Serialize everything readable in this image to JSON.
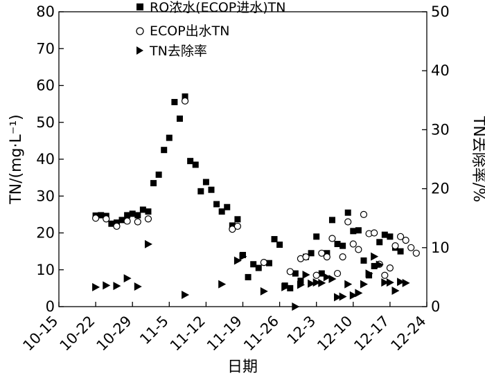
{
  "chart_data": {
    "type": "scatter",
    "xlabel": "日期",
    "ylabel_left": "TN/(mg·L⁻¹)",
    "ylabel_right": "TN去除率/%",
    "x_ticks": [
      "10-15",
      "10-22",
      "10-29",
      "11-5",
      "11-12",
      "11-19",
      "11-26",
      "12-3",
      "12-10",
      "12-17",
      "12-24"
    ],
    "x_range": [
      0,
      70
    ],
    "y_left_ticks": [
      "0",
      "10",
      "20",
      "30",
      "40",
      "50",
      "60",
      "70",
      "80"
    ],
    "y_left_range": [
      0,
      80
    ],
    "y_right_ticks": [
      "0",
      "10",
      "20",
      "30",
      "40",
      "50"
    ],
    "y_right_range": [
      0,
      50
    ],
    "legend": [
      "RO浓水(ECOP进水)TN",
      "ECOP出水TN",
      "TN去除率"
    ],
    "series": [
      {
        "name": "RO浓水(ECOP进水)TN",
        "axis": "left",
        "marker": "square",
        "points": [
          [
            7,
            24.7
          ],
          [
            8,
            24.8
          ],
          [
            9,
            24.6
          ],
          [
            10,
            22.5
          ],
          [
            11,
            22.8
          ],
          [
            12,
            23.5
          ],
          [
            13,
            24.8
          ],
          [
            14,
            25.2
          ],
          [
            15,
            24.8
          ],
          [
            16,
            26.3
          ],
          [
            17,
            25.8
          ],
          [
            18,
            33.5
          ],
          [
            19,
            35.8
          ],
          [
            20,
            42.5
          ],
          [
            21,
            45.8
          ],
          [
            22,
            55.5
          ],
          [
            23,
            51
          ],
          [
            24,
            57
          ],
          [
            25,
            39.5
          ],
          [
            26,
            38.5
          ],
          [
            27,
            31.3
          ],
          [
            28,
            33.8
          ],
          [
            29,
            31.7
          ],
          [
            30,
            27.8
          ],
          [
            31,
            25.8
          ],
          [
            32,
            27
          ],
          [
            33,
            22
          ],
          [
            34,
            23.7
          ],
          [
            35,
            14
          ],
          [
            36,
            8
          ],
          [
            37,
            11.5
          ],
          [
            38,
            10.5
          ],
          [
            40,
            11.8
          ],
          [
            41,
            18.3
          ],
          [
            42,
            16.8
          ],
          [
            43,
            5.7
          ],
          [
            44,
            5
          ],
          [
            45,
            9
          ],
          [
            46,
            7
          ],
          [
            47,
            13.5
          ],
          [
            48,
            14.5
          ],
          [
            49,
            19
          ],
          [
            50,
            9
          ],
          [
            51,
            14.5
          ],
          [
            52,
            23.5
          ],
          [
            53,
            17
          ],
          [
            54,
            16.5
          ],
          [
            55,
            25.5
          ],
          [
            56,
            20.5
          ],
          [
            57,
            20.7
          ],
          [
            58,
            12.5
          ],
          [
            59,
            8.5
          ],
          [
            60,
            11
          ],
          [
            61,
            17.5
          ],
          [
            62,
            19.5
          ],
          [
            63,
            19
          ],
          [
            64,
            16
          ],
          [
            65,
            15
          ]
        ]
      },
      {
        "name": "ECOP出水TN",
        "axis": "left",
        "marker": "circle",
        "points": [
          [
            7,
            24
          ],
          [
            9,
            23.8
          ],
          [
            11,
            21.8
          ],
          [
            13,
            23.2
          ],
          [
            15,
            23
          ],
          [
            17,
            23.8
          ],
          [
            24,
            55.8
          ],
          [
            33,
            21
          ],
          [
            34,
            21.8
          ],
          [
            39,
            12
          ],
          [
            44,
            9.5
          ],
          [
            46,
            13
          ],
          [
            47,
            13.5
          ],
          [
            49,
            8.5
          ],
          [
            50,
            14.5
          ],
          [
            51,
            13.5
          ],
          [
            52,
            18.5
          ],
          [
            53,
            9
          ],
          [
            54,
            13.5
          ],
          [
            55,
            23
          ],
          [
            56,
            17
          ],
          [
            57,
            15.5
          ],
          [
            58,
            25
          ],
          [
            59,
            19.8
          ],
          [
            60,
            20
          ],
          [
            61,
            11.5
          ],
          [
            62,
            8.5
          ],
          [
            63,
            10.5
          ],
          [
            64,
            16.5
          ],
          [
            65,
            19
          ],
          [
            66,
            18
          ],
          [
            67,
            16
          ],
          [
            68,
            14.5
          ]
        ]
      },
      {
        "name": "TN去除率",
        "axis": "right",
        "marker": "triangle-right",
        "points": [
          [
            7,
            3.3
          ],
          [
            9,
            3.6
          ],
          [
            11,
            3.5
          ],
          [
            13,
            4.8
          ],
          [
            15,
            3.4
          ],
          [
            17,
            10.6
          ],
          [
            24,
            2
          ],
          [
            31,
            3.8
          ],
          [
            34,
            7.8
          ],
          [
            35,
            8.5
          ],
          [
            39,
            2.6
          ],
          [
            43,
            3.3
          ],
          [
            45,
            0
          ],
          [
            46,
            3.7
          ],
          [
            47,
            5.4
          ],
          [
            48,
            3.9
          ],
          [
            49,
            4.1
          ],
          [
            50,
            4
          ],
          [
            51,
            5
          ],
          [
            52,
            4.7
          ],
          [
            53,
            1.6
          ],
          [
            54,
            1.7
          ],
          [
            55,
            3.8
          ],
          [
            56,
            1.9
          ],
          [
            57,
            2.3
          ],
          [
            58,
            3.8
          ],
          [
            59,
            5.6
          ],
          [
            60,
            8.5
          ],
          [
            61,
            7.1
          ],
          [
            62,
            4.1
          ],
          [
            63,
            4.1
          ],
          [
            64,
            2.7
          ],
          [
            65,
            4.2
          ],
          [
            66,
            4
          ]
        ]
      }
    ]
  }
}
